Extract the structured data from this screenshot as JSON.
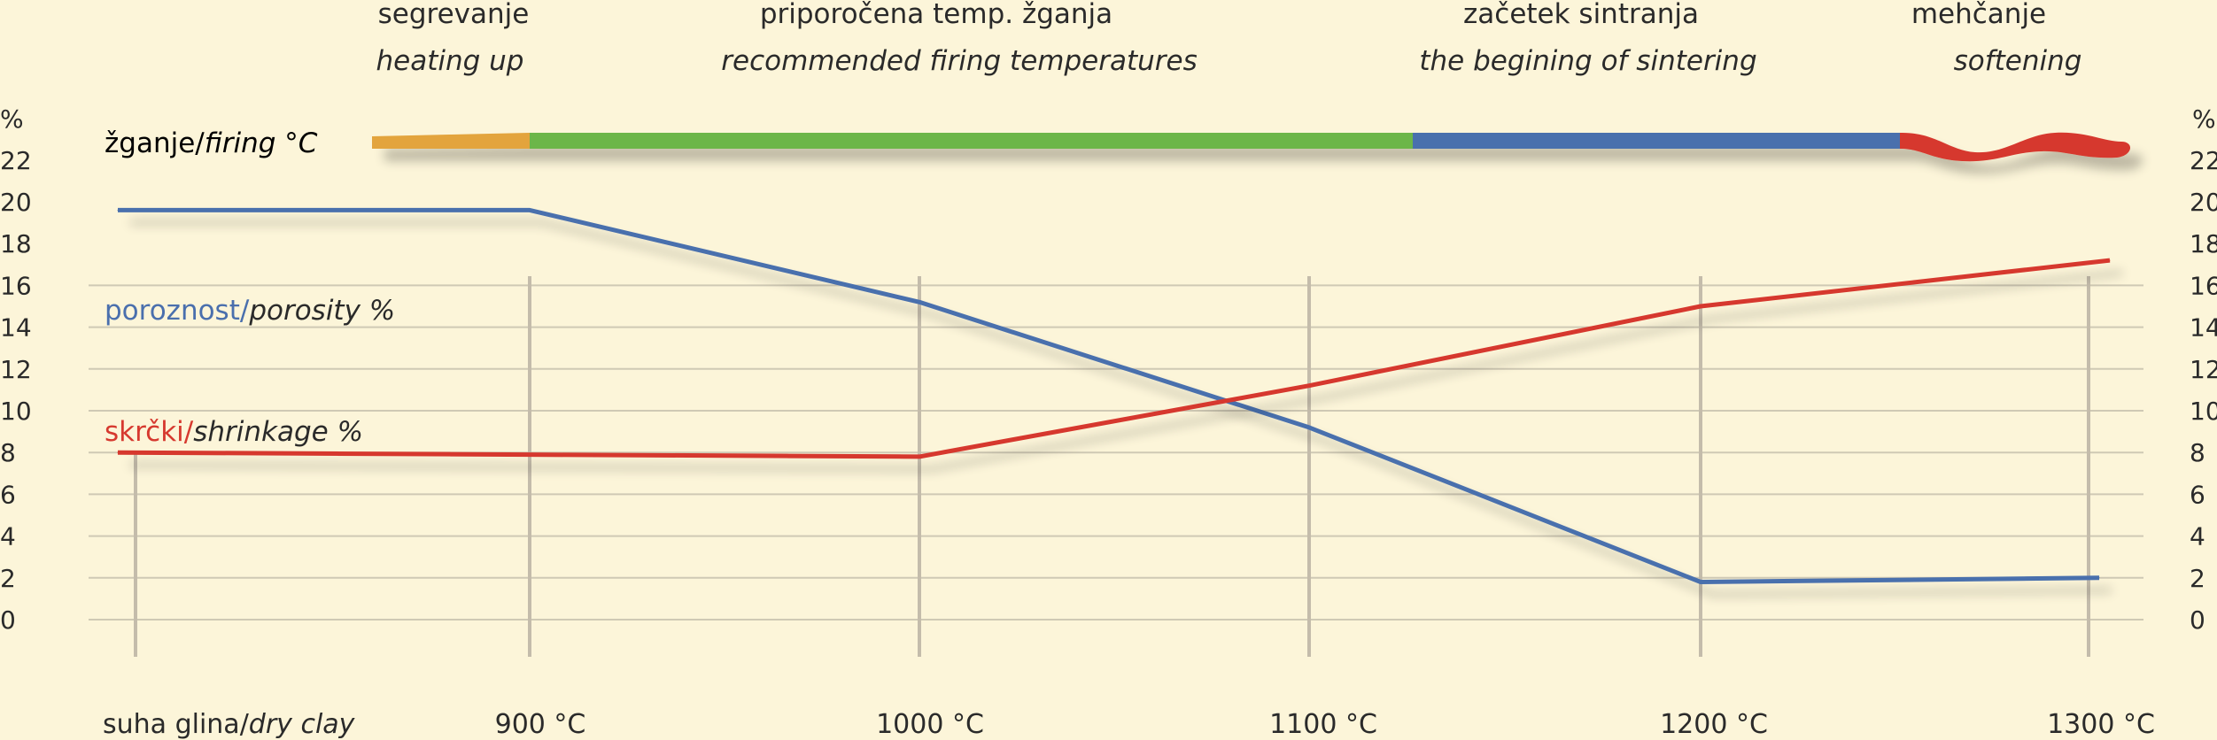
{
  "chart_data": {
    "type": "line",
    "y_unit": "%",
    "ylim": [
      0,
      22
    ],
    "yticks": [
      0,
      2,
      4,
      6,
      8,
      10,
      12,
      14,
      16,
      18,
      20,
      22
    ],
    "x_categories": [
      "suha glina/dry clay",
      "900 °C",
      "1000 °C",
      "1100 °C",
      "1200 °C",
      "1300 °C"
    ],
    "x_tick_labels": {
      "dry_main": "suha glina/",
      "dry_italic": "dry clay",
      "t900": "900 °C",
      "t1000": "1000 °C",
      "t1100": "1100 °C",
      "t1200": "1200 °C",
      "t1300": "1300 °C"
    },
    "grid": true,
    "series": [
      {
        "name": "poroznost/porosity %",
        "label_main": "poroznost/",
        "label_italic": "porosity %",
        "color": "#4a6fad",
        "points": [
          {
            "x": "suha glina",
            "y": 19.6
          },
          {
            "x": "900 °C",
            "y": 19.6
          },
          {
            "x": "1000 °C",
            "y": 15.2
          },
          {
            "x": "1100 °C",
            "y": 9.2
          },
          {
            "x": "1200 °C",
            "y": 1.8
          },
          {
            "x": "1300 °C",
            "y": 2.0
          }
        ]
      },
      {
        "name": "skrčki/shrinkage %",
        "label_main": "skrčki/",
        "label_italic": "shrinkage %",
        "color": "#d6392f",
        "points": [
          {
            "x": "suha glina",
            "y": 8.0
          },
          {
            "x": "900 °C",
            "y": 7.9
          },
          {
            "x": "1000 °C",
            "y": 7.8
          },
          {
            "x": "1100 °C",
            "y": 11.2
          },
          {
            "x": "1200 °C",
            "y": 15.0
          },
          {
            "x": "1300 °C",
            "y": 17.2
          }
        ]
      }
    ],
    "firing_bar": {
      "label_main": "žganje/",
      "label_italic": "firing °C",
      "segments": [
        {
          "name": "heating up",
          "color": "#e3a43d"
        },
        {
          "name": "recommended firing temperatures",
          "color": "#6cb648"
        },
        {
          "name": "the begining of sintering",
          "color": "#4a6fad"
        },
        {
          "name": "softening",
          "color": "#d6392f"
        }
      ]
    },
    "phases": [
      {
        "top": "segrevanje",
        "bottom": "heating up"
      },
      {
        "top": "priporočena temp. žganja",
        "bottom": "recommended firing temperatures"
      },
      {
        "top": "začetek sintranja",
        "bottom": "the begining of sintering"
      },
      {
        "top": "mehčanje",
        "bottom": "softening"
      }
    ]
  }
}
